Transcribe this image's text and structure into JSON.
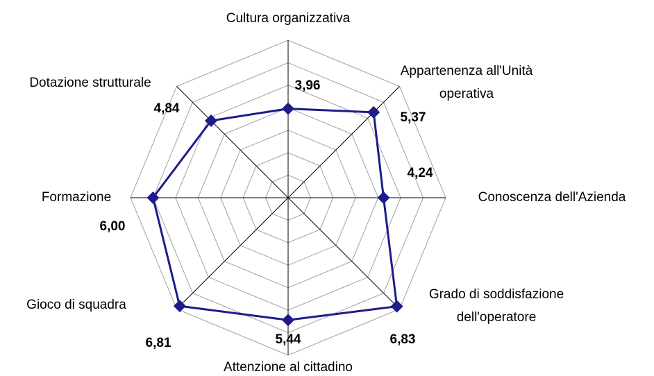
{
  "chart_data": {
    "type": "radar",
    "categories": [
      "Cultura organizzativa",
      "Appartenenza all'Unità\noperativa",
      "Conoscenza dell'Azienda",
      "Grado di soddisfazione\ndell'operatore",
      "Attenzione al cittadino",
      "Gioco di squadra",
      "Formazione",
      "Dotazione strutturale"
    ],
    "values": [
      3.96,
      5.37,
      4.24,
      6.83,
      5.44,
      6.81,
      6.0,
      4.84
    ],
    "value_labels": [
      "3,96",
      "5,37",
      "4,24",
      "6,83",
      "5,44",
      "6,81",
      "6,00",
      "4,84"
    ],
    "color": "#1c1c8a",
    "ylim": [
      0,
      7
    ],
    "yticks": [
      0,
      1,
      2,
      3,
      4,
      5,
      6,
      7
    ],
    "grid": true
  }
}
